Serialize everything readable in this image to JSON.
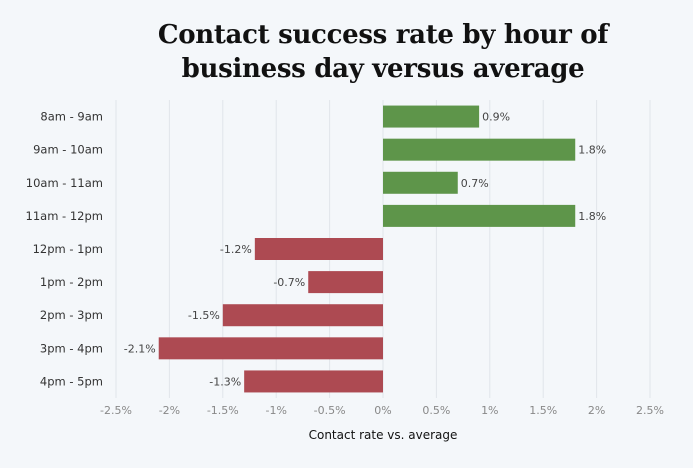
{
  "chart_data": {
    "type": "bar",
    "orientation": "horizontal",
    "title": "Contact success rate by hour of business day versus average",
    "title_lines": [
      "Contact success rate by hour of",
      "business day versus average"
    ],
    "xlabel": "Contact rate vs. average",
    "ylabel": "",
    "categories": [
      "8am - 9am",
      "9am - 10am",
      "10am - 11am",
      "11am - 12pm",
      "12pm - 1pm",
      "1pm - 2pm",
      "2pm - 3pm",
      "3pm - 4pm",
      "4pm - 5pm"
    ],
    "values": [
      0.9,
      1.8,
      0.7,
      1.8,
      -1.2,
      -0.7,
      -1.5,
      -2.1,
      -1.3
    ],
    "data_labels": [
      "0.9%",
      "1.8%",
      "0.7%",
      "1.8%",
      "-1.2%",
      "-0.7%",
      "-1.5%",
      "-2.1%",
      "-1.3%"
    ],
    "xlim": [
      -2.5,
      2.5
    ],
    "x_ticks": [
      -2.5,
      -2,
      -1.5,
      -1,
      -0.5,
      0,
      0.5,
      1,
      1.5,
      2,
      2.5
    ],
    "x_tick_labels": [
      "-2.5%",
      "-2%",
      "-1.5%",
      "-1%",
      "-0.5%",
      "0%",
      "0.5%",
      "1%",
      "1.5%",
      "2%",
      "2.5%"
    ],
    "grid": "vertical",
    "legend": "none",
    "colors": {
      "positive": "#5e954a",
      "negative": "#ad4a52",
      "background": "#f4f7fa",
      "grid": "#e1e5ea"
    }
  }
}
